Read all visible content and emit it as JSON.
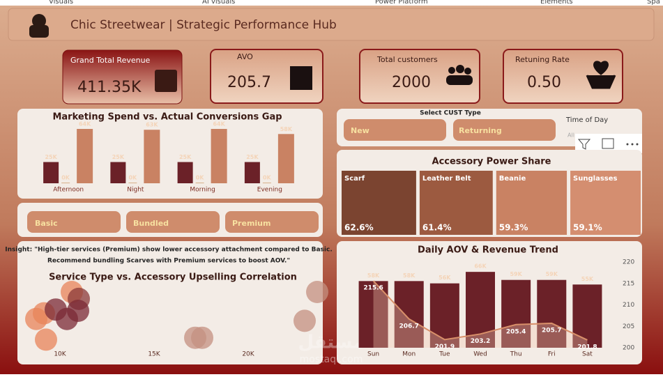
{
  "header": {
    "tabs": [
      "Visuals",
      "AI visuals",
      "Power Platform",
      "Elements",
      "Spa"
    ],
    "title": "Chic Streetwear | Strategic Performance Hub"
  },
  "kpis": [
    {
      "label": "Grand Total Revenue",
      "value": "411.35K"
    },
    {
      "label": "AVO",
      "value": "205.7"
    },
    {
      "label": "Total customers",
      "value": "2000"
    },
    {
      "label": "Retuning Rate",
      "value": "0.50"
    }
  ],
  "service_slicer": [
    "Basic",
    "Bundled",
    "Premium"
  ],
  "cust_slicer": {
    "title": "Select CUST Type",
    "options": [
      "New",
      "Returning"
    ]
  },
  "time_slicer": {
    "title": "Time of Day",
    "value": "All"
  },
  "insight": [
    "Insight: \"High-tier services (Premium) show lower accessory attachment compared to Basic.",
    "Recommend bundling Scarves with Premium services to boost AOV.\""
  ],
  "watermark": [
    "مستقل",
    "mostaql.com"
  ],
  "chart_data": [
    {
      "type": "bar",
      "title": "Marketing Spend vs. Actual Conversions Gap",
      "categories": [
        "Afternoon",
        "Night",
        "Morning",
        "Evening"
      ],
      "series": [
        {
          "color": "#6b2128",
          "values": [
            25,
            25,
            25,
            25
          ],
          "value_labels": [
            "25K",
            "25K",
            "25K",
            "25K"
          ]
        },
        {
          "color": "#d8b08a",
          "values": [
            0,
            0,
            0,
            0
          ],
          "value_labels": [
            "0K",
            "0K",
            "0K",
            "0K"
          ]
        },
        {
          "color": "#c98263",
          "values": [
            64,
            63,
            64,
            58
          ],
          "value_labels": [
            "64K",
            "63K",
            "64K",
            "58K"
          ]
        }
      ]
    },
    {
      "type": "treemap",
      "title": "Accessory Power Share",
      "categories": [
        "Scarf",
        "Leather Belt",
        "Beanie",
        "Sunglasses"
      ],
      "values": [
        62.6,
        61.4,
        59.3,
        59.1
      ],
      "value_labels": [
        "62.6%",
        "61.4%",
        "59.3%",
        "59.1%"
      ],
      "colors": [
        "#7b4430",
        "#9c5a40",
        "#c98263",
        "#d48e70"
      ]
    },
    {
      "type": "scatter",
      "title": "Service Type vs. Accessory Upselling Correlation",
      "x": [
        8741,
        9259,
        9148,
        9778,
        10370,
        10630,
        11000,
        10963,
        17185,
        17556,
        23000,
        23667
      ],
      "y": [
        47,
        14,
        56,
        62,
        47,
        90,
        79,
        60,
        17,
        17,
        44,
        90
      ],
      "colors": [
        "#e8845a",
        "#e8845a",
        "#e8845a",
        "#7b2a35",
        "#7b2a35",
        "#e8845a",
        "#8b3a3a",
        "#7b2a35",
        "#c49080",
        "#c49080",
        "#c49080",
        "#c49080"
      ],
      "xlim": [
        8000,
        24000
      ],
      "xticks": [
        {
          "value": 10000,
          "label": "10K"
        },
        {
          "value": 15000,
          "label": "15K"
        },
        {
          "value": 20000,
          "label": "20K"
        }
      ],
      "ylim": [
        0,
        100
      ]
    },
    {
      "type": "combo",
      "title": "Daily AOV & Revenue Trend",
      "categories": [
        "Sun",
        "Mon",
        "Tue",
        "Wed",
        "Thu",
        "Fri",
        "Sat"
      ],
      "series": [
        {
          "type": "bar",
          "color": "#6b2128",
          "values": [
            58,
            58,
            56,
            66,
            59,
            59,
            55
          ],
          "value_labels": [
            "58K",
            "58K",
            "56K",
            "66K",
            "59K",
            "59K",
            "55K"
          ]
        },
        {
          "type": "line",
          "axis": "y2",
          "color": "#d9906a",
          "values": [
            215.6,
            206.7,
            201.9,
            203.2,
            205.4,
            205.7,
            201.8
          ]
        }
      ],
      "y2lim": [
        200,
        220
      ],
      "y2ticks": [
        200,
        205,
        210,
        215,
        220
      ]
    }
  ]
}
